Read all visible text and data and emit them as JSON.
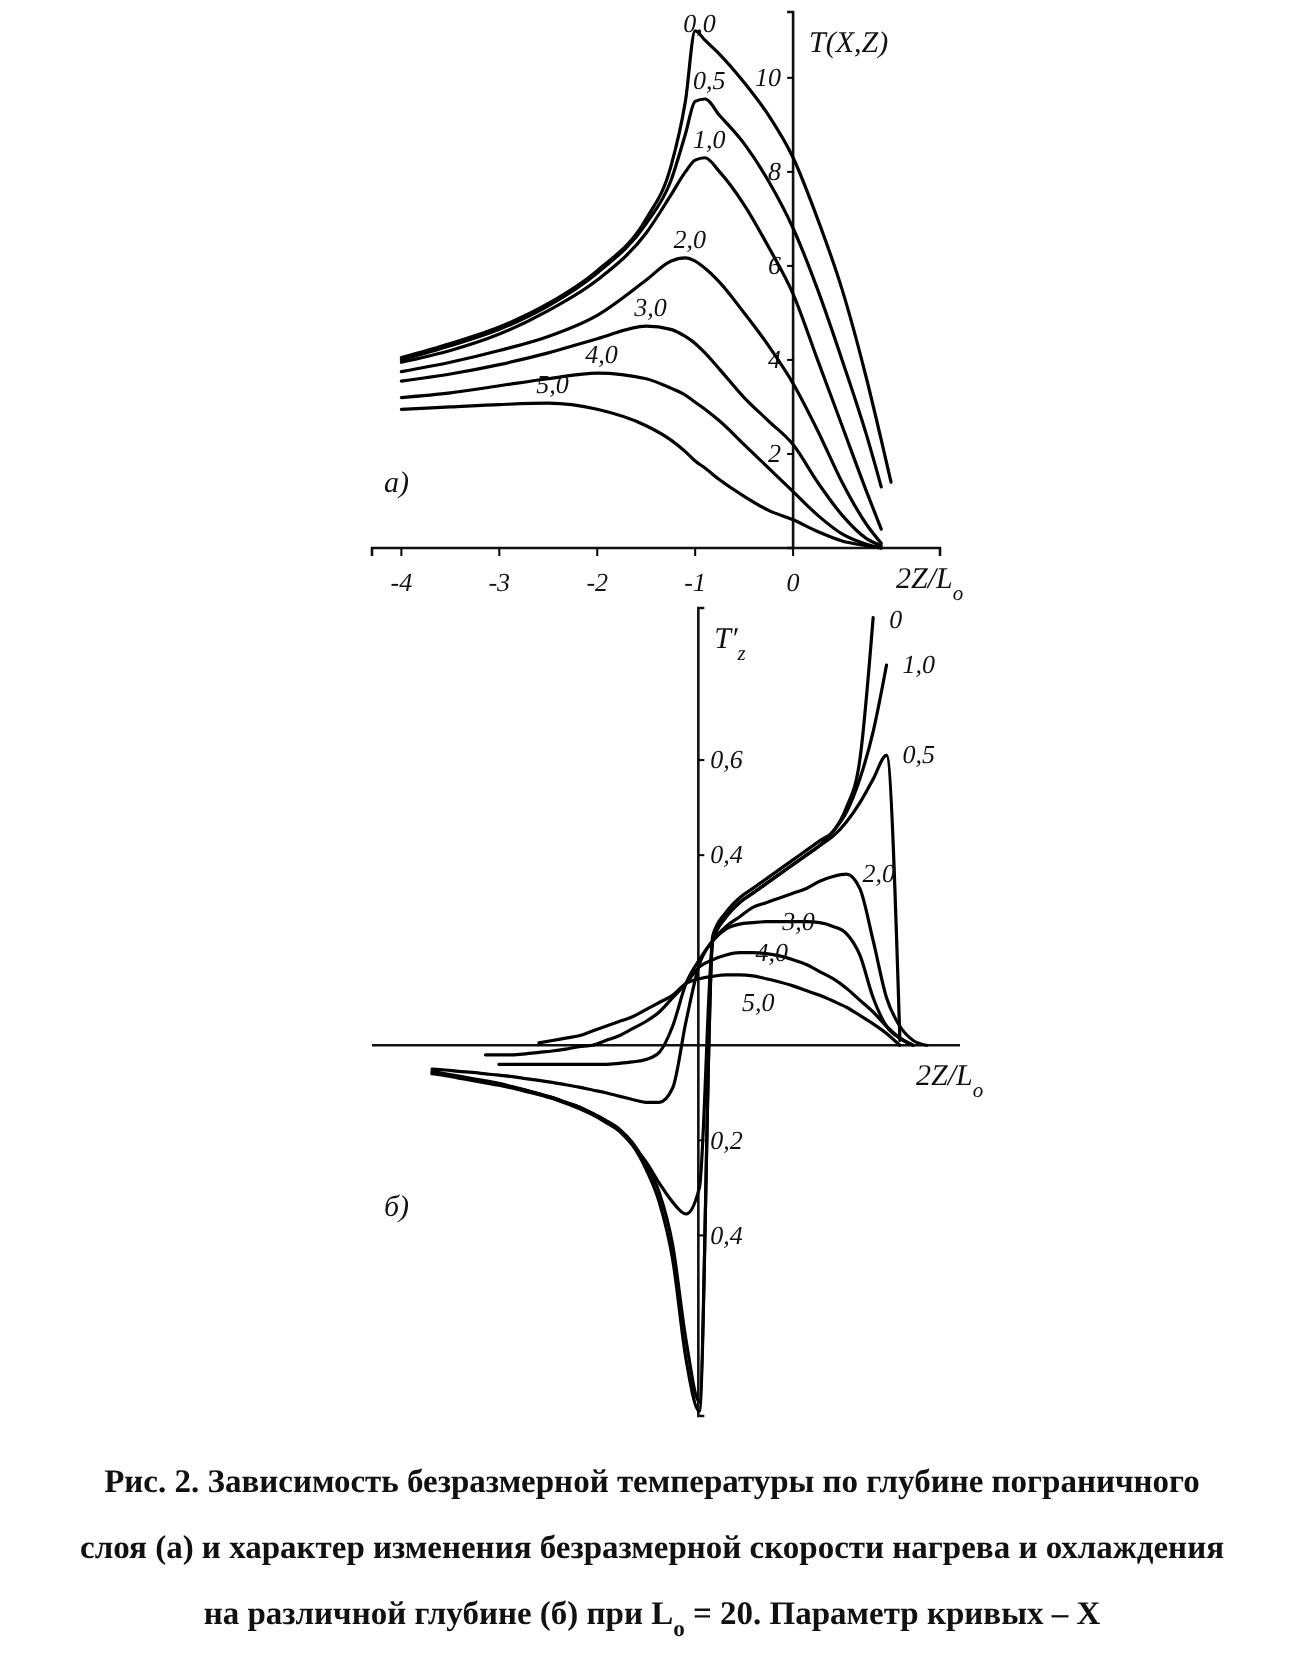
{
  "chart_data": [
    {
      "type": "line",
      "xlabel": "2Z/L$_{o}$",
      "ylabel": "T(X,Z)",
      "x": [
        -4,
        -3.5,
        -3,
        -2.5,
        -2,
        -1.5,
        -1.25,
        -1.1,
        -1,
        -0.9,
        -0.75,
        -0.5,
        -0.25,
        0,
        0.25,
        0.5,
        0.75,
        0.9,
        1.0
      ],
      "xlim": [
        -4.3,
        1.5
      ],
      "ylim": [
        0,
        11.4
      ],
      "xticks": [
        -4,
        -3,
        -2,
        -1,
        0
      ],
      "yticks": [
        2,
        4,
        6,
        8,
        10
      ],
      "annotations": [
        "а)"
      ],
      "series": [
        {
          "name": "0,0",
          "color": "#000000",
          "values": [
            4.05,
            4.35,
            4.7,
            5.2,
            5.9,
            7.0,
            8.1,
            9.5,
            11.0,
            10.8,
            10.5,
            9.9,
            9.2,
            8.3,
            7.0,
            5.5,
            3.6,
            2.3,
            1.4
          ]
        },
        {
          "name": "0,5",
          "color": "#000000",
          "values": [
            4.0,
            4.3,
            4.65,
            5.15,
            5.85,
            6.9,
            7.8,
            8.8,
            9.5,
            9.55,
            9.2,
            8.6,
            7.8,
            6.8,
            5.5,
            4.0,
            2.4,
            1.3,
            null
          ]
        },
        {
          "name": "1,0",
          "color": "#000000",
          "values": [
            3.95,
            4.2,
            4.55,
            5.05,
            5.7,
            6.7,
            7.5,
            8.0,
            8.25,
            8.3,
            8.0,
            7.3,
            6.4,
            5.4,
            4.0,
            2.6,
            1.2,
            0.4,
            null
          ]
        },
        {
          "name": "2,0",
          "color": "#000000",
          "values": [
            3.75,
            3.95,
            4.2,
            4.5,
            4.95,
            5.7,
            6.1,
            6.17,
            6.1,
            5.95,
            5.65,
            5.0,
            4.3,
            3.5,
            2.5,
            1.4,
            0.5,
            0.1,
            null
          ]
        },
        {
          "name": "3,0",
          "color": "#000000",
          "values": [
            3.55,
            3.7,
            3.9,
            4.15,
            4.45,
            4.72,
            4.65,
            4.5,
            4.35,
            4.15,
            3.8,
            3.2,
            2.7,
            2.2,
            1.4,
            0.7,
            0.2,
            0.05,
            null
          ]
        },
        {
          "name": "4,0",
          "color": "#000000",
          "values": [
            3.2,
            3.3,
            3.45,
            3.6,
            3.72,
            3.6,
            3.4,
            3.25,
            3.1,
            2.95,
            2.7,
            2.2,
            1.7,
            1.2,
            0.7,
            0.3,
            0.08,
            0,
            null
          ]
        },
        {
          "name": "5,0",
          "color": "#000000",
          "values": [
            2.95,
            3.0,
            3.05,
            3.08,
            2.95,
            2.6,
            2.3,
            2.05,
            1.85,
            1.7,
            1.45,
            1.1,
            0.8,
            0.6,
            0.35,
            0.15,
            0.05,
            0,
            null
          ]
        }
      ]
    },
    {
      "type": "line",
      "xlabel": "2Z/L$_{o}$",
      "ylabel": "T′$_{z}$",
      "categories": [
        null,
        null,
        null,
        null,
        null,
        null,
        null,
        null,
        null,
        null,
        null,
        null,
        null,
        null,
        null,
        null,
        null,
        null,
        null,
        null,
        null,
        null,
        null,
        null,
        null,
        null,
        null,
        null,
        null,
        null,
        null,
        null,
        null,
        null,
        null,
        null,
        null,
        null,
        null
      ],
      "ylim": [
        -0.78,
        0.92
      ],
      "yticks": [
        {
          "value": 0.6,
          "label": "0,6"
        },
        {
          "value": 0.4,
          "label": "0,4"
        },
        {
          "value": -0.2,
          "label": "0,2"
        },
        {
          "value": -0.4,
          "label": "0,4"
        }
      ],
      "tick_labels": "y",
      "annotations": [
        "б)",
        "Рис. 2. Зависимость безразмерной температуры по глубине пограничного слоя (а) и характер изменения безразмерной скорости нагрева и охлаждения на различной глубине (б) при L$_{o}$ = 20. Параметр кривых – X"
      ],
      "series": [
        {
          "name": "0",
          "color": "#000000",
          "values": [
            -0.06,
            -0.064,
            -0.069,
            -0.074,
            -0.079,
            -0.084,
            -0.09,
            -0.097,
            -0.104,
            -0.112,
            -0.122,
            -0.133,
            -0.146,
            -0.162,
            -0.18,
            -0.21,
            -0.26,
            -0.33,
            -0.45,
            -0.66,
            -0.77,
            0.23,
            0.28,
            0.31,
            0.33,
            0.35,
            0.37,
            0.39,
            0.41,
            0.43,
            0.45,
            0.5,
            0.6,
            0.9,
            null,
            null,
            null,
            null,
            null
          ]
        },
        {
          "name": "0,5",
          "color": "#000000",
          "values": [
            -0.058,
            -0.062,
            -0.067,
            -0.072,
            -0.077,
            -0.082,
            -0.088,
            -0.095,
            -0.102,
            -0.11,
            -0.12,
            -0.13,
            -0.143,
            -0.158,
            -0.176,
            -0.205,
            -0.25,
            -0.31,
            -0.42,
            -0.62,
            -0.75,
            0.22,
            0.27,
            0.3,
            0.32,
            0.34,
            0.36,
            0.38,
            0.4,
            0.42,
            0.44,
            0.47,
            0.51,
            0.56,
            0.61,
            0.01,
            null,
            null,
            null
          ]
        },
        {
          "name": "1,0",
          "color": "#000000",
          "values": [
            -0.055,
            -0.06,
            -0.065,
            -0.07,
            -0.075,
            -0.08,
            -0.087,
            -0.094,
            -0.102,
            -0.11,
            -0.12,
            -0.13,
            -0.145,
            -0.16,
            -0.18,
            -0.21,
            -0.245,
            -0.29,
            -0.33,
            -0.355,
            -0.3,
            0.22,
            0.27,
            0.3,
            0.32,
            0.34,
            0.36,
            0.38,
            0.4,
            0.42,
            0.45,
            0.49,
            0.56,
            0.66,
            0.8,
            null,
            null,
            null,
            null
          ]
        },
        {
          "name": "2,0",
          "color": "#000000",
          "values": [
            -0.05,
            -0.052,
            -0.055,
            -0.057,
            -0.06,
            -0.063,
            -0.066,
            -0.07,
            -0.074,
            -0.078,
            -0.083,
            -0.088,
            -0.094,
            -0.1,
            -0.107,
            -0.114,
            -0.12,
            -0.12,
            -0.09,
            0.05,
            0.17,
            0.22,
            0.25,
            0.27,
            0.29,
            0.3,
            0.31,
            0.32,
            0.33,
            0.345,
            0.355,
            0.36,
            0.33,
            0.22,
            0.1,
            0.04,
            0.01,
            0,
            null
          ]
        },
        {
          "name": "3,0",
          "color": "#000000",
          "values": [
            null,
            null,
            null,
            null,
            null,
            -0.04,
            -0.04,
            -0.04,
            -0.04,
            -0.04,
            -0.04,
            -0.04,
            -0.04,
            -0.04,
            -0.038,
            -0.035,
            -0.03,
            -0.015,
            0.04,
            0.13,
            0.18,
            0.22,
            0.245,
            0.255,
            0.258,
            0.26,
            0.26,
            0.26,
            0.26,
            0.258,
            0.25,
            0.235,
            0.19,
            0.1,
            0.04,
            0.015,
            0,
            null,
            null
          ]
        },
        {
          "name": "4,0",
          "color": "#000000",
          "values": [
            null,
            null,
            null,
            null,
            -0.02,
            -0.02,
            -0.02,
            -0.018,
            -0.015,
            -0.012,
            -0.008,
            -0.003,
            0,
            0.01,
            0.02,
            0.035,
            0.05,
            0.07,
            0.1,
            0.13,
            0.165,
            0.18,
            0.19,
            0.195,
            0.195,
            0.193,
            0.188,
            0.18,
            0.17,
            0.155,
            0.14,
            0.12,
            0.095,
            0.07,
            0.04,
            0.015,
            0,
            null,
            null
          ]
        },
        {
          "name": "5,0",
          "color": "#000000",
          "values": [
            null,
            null,
            null,
            null,
            null,
            null,
            null,
            null,
            0.005,
            0.01,
            0.015,
            0.02,
            0.03,
            0.04,
            0.05,
            0.06,
            0.075,
            0.09,
            0.105,
            0.13,
            0.14,
            0.145,
            0.148,
            0.148,
            0.146,
            0.14,
            0.133,
            0.125,
            0.115,
            0.105,
            0.093,
            0.08,
            0.063,
            0.045,
            0.025,
            0,
            null,
            null,
            null
          ]
        }
      ]
    }
  ]
}
